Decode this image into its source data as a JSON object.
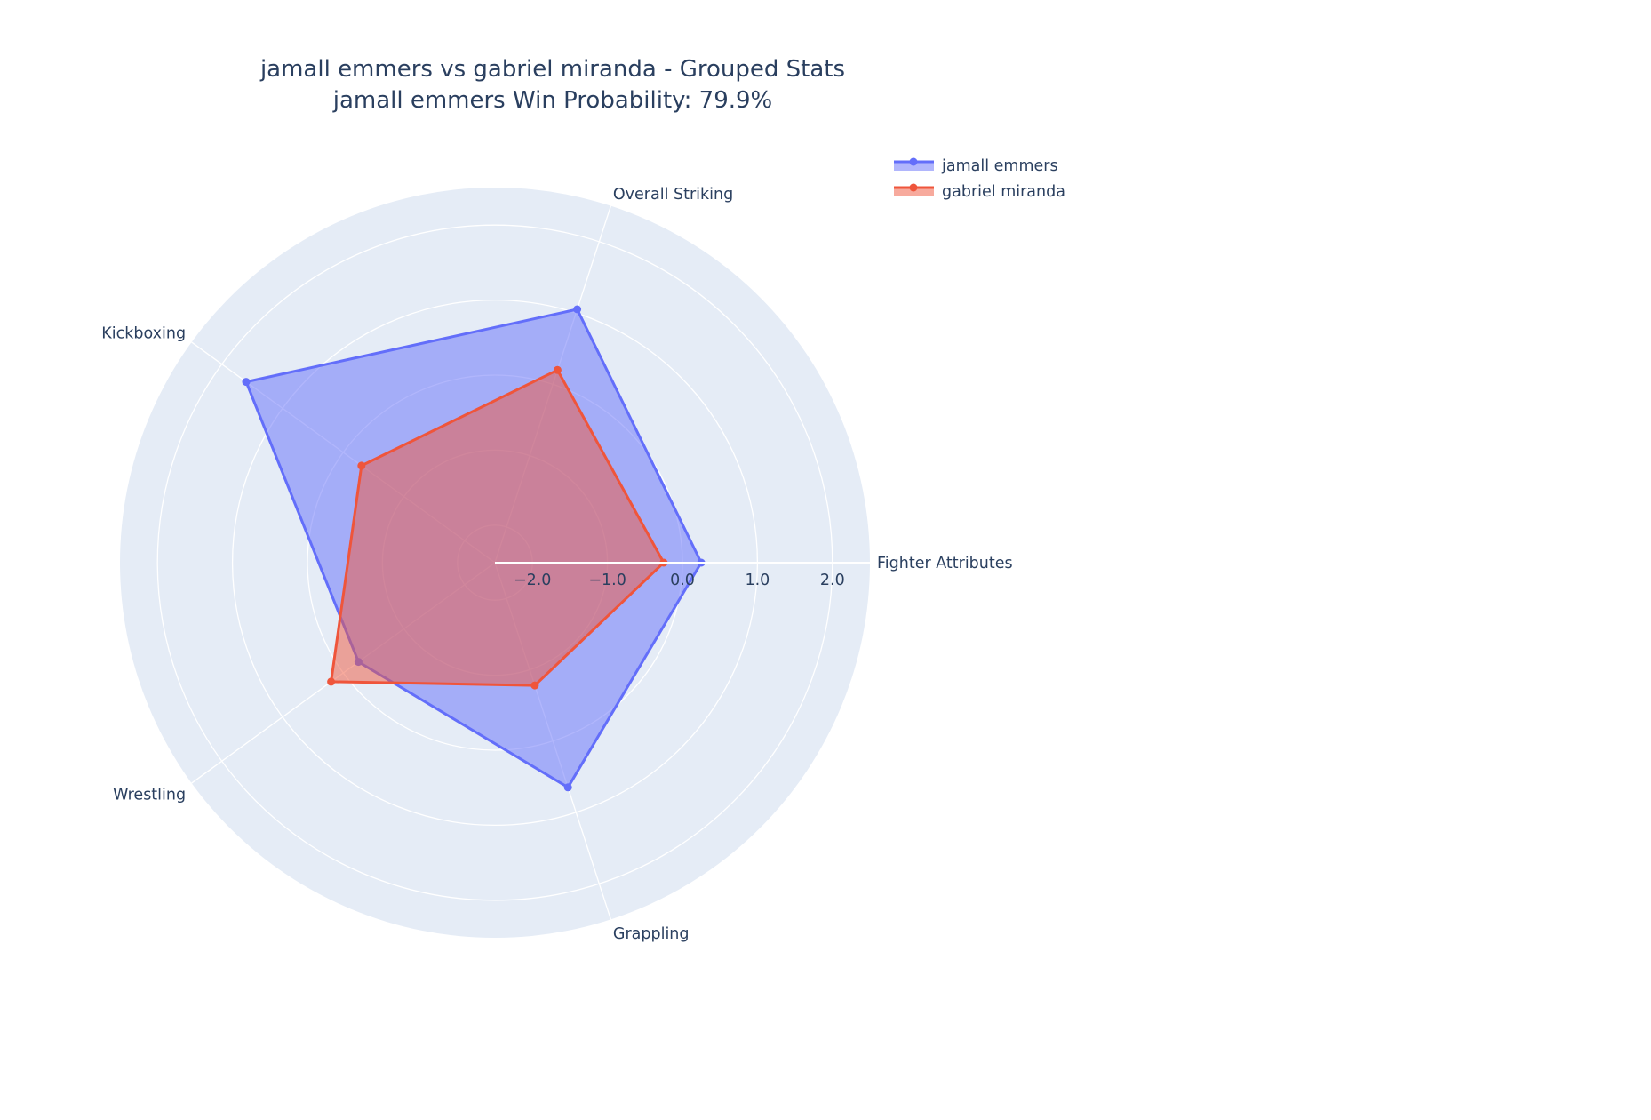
{
  "chart_data": {
    "type": "radar",
    "title": "jamall emmers vs gabriel miranda - Grouped Stats",
    "subtitle": "jamall emmers Win Probability: 79.9%",
    "categories": [
      "Fighter Attributes",
      "Overall Striking",
      "Kickboxing",
      "Wrestling",
      "Grappling"
    ],
    "radial_range": [
      -2.5,
      2.5
    ],
    "radial_ticks": [
      -2.0,
      -1.0,
      0.0,
      1.0,
      2.0
    ],
    "radial_tick_labels": [
      "−2.0",
      "−1.0",
      "0.0",
      "1.0",
      "2.0"
    ],
    "series": [
      {
        "name": "jamall emmers",
        "values": [
          0.25,
          1.05,
          1.6,
          -0.25,
          0.65
        ],
        "color": "#636efa"
      },
      {
        "name": "gabriel miranda",
        "values": [
          -0.25,
          0.2,
          -0.3,
          0.2,
          -0.78
        ],
        "color": "#ef553b"
      }
    ],
    "legend_position": "top-right",
    "grid": true,
    "background_color": "#e5ecf6"
  }
}
